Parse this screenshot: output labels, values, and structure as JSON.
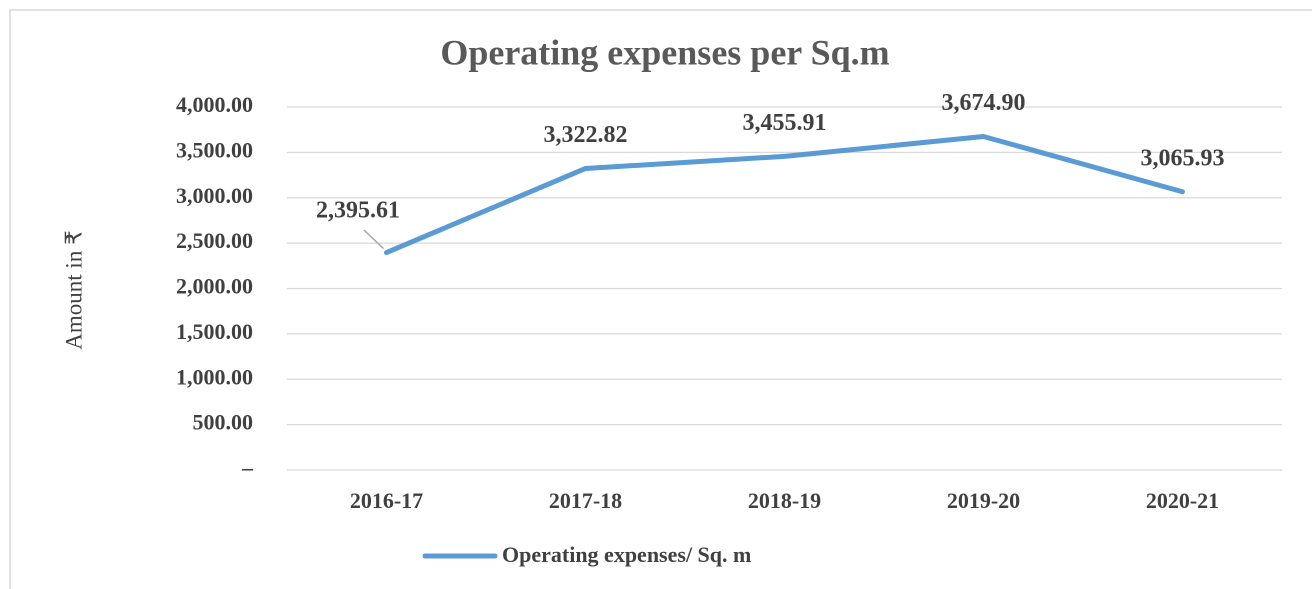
{
  "chart_data": {
    "type": "line",
    "title": "Operating expenses per Sq.m",
    "y_axis_label": "Amount in ₹",
    "categories": [
      "2016-17",
      "2017-18",
      "2018-19",
      "2019-20",
      "2020-21"
    ],
    "series": [
      {
        "name": "Operating expenses/ Sq. m",
        "color": "#5b9bd5",
        "values": [
          2395.61,
          3322.82,
          3455.91,
          3674.9,
          3065.93
        ],
        "value_labels": [
          "2,395.61",
          "3,322.82",
          "3,455.91",
          "3,674.90",
          "3,065.93"
        ]
      }
    ],
    "ylim": [
      0,
      4000
    ],
    "yticks": [
      {
        "value": 0,
        "label": "–"
      },
      {
        "value": 500,
        "label": "500.00"
      },
      {
        "value": 1000,
        "label": "1,000.00"
      },
      {
        "value": 1500,
        "label": "1,500.00"
      },
      {
        "value": 2000,
        "label": "2,000.00"
      },
      {
        "value": 2500,
        "label": "2,500.00"
      },
      {
        "value": 3000,
        "label": "3,000.00"
      },
      {
        "value": 3500,
        "label": "3,500.00"
      },
      {
        "value": 4000,
        "label": "4,000.00"
      }
    ],
    "grid": true,
    "legend": "bottom"
  }
}
